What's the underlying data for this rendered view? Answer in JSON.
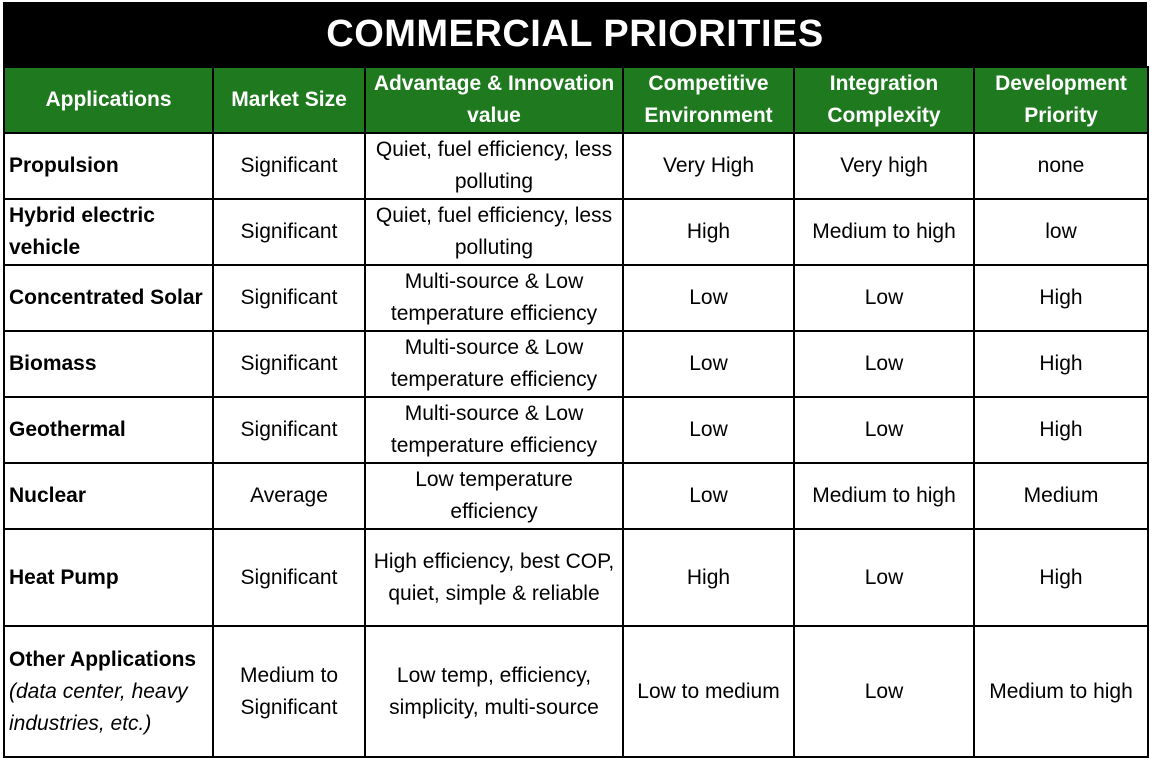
{
  "title": "COMMERCIAL PRIORITIES",
  "colors": {
    "title_bg": "#000000",
    "header_bg": "#1f7a1f",
    "header_text": "#ffffff",
    "border": "#000000"
  },
  "columns": [
    "Applications",
    "Market Size",
    "Advantage & Innovation value",
    "Competitive Environment",
    "Integration Complexity",
    "Development Priority"
  ],
  "rows": [
    {
      "application": "Propulsion",
      "note": "",
      "market_size": "Significant",
      "advantage": "Quiet, fuel efficiency, less polluting",
      "competitive": "Very High",
      "integration": "Very high",
      "priority": "none"
    },
    {
      "application": "Hybrid electric vehicle",
      "note": "",
      "market_size": "Significant",
      "advantage": "Quiet, fuel efficiency, less polluting",
      "competitive": "High",
      "integration": "Medium to high",
      "priority": "low"
    },
    {
      "application": "Concentrated Solar",
      "note": "",
      "market_size": "Significant",
      "advantage": "Multi-source & Low temperature efficiency",
      "competitive": "Low",
      "integration": "Low",
      "priority": "High"
    },
    {
      "application": "Biomass",
      "note": "",
      "market_size": "Significant",
      "advantage": "Multi-source & Low temperature efficiency",
      "competitive": "Low",
      "integration": "Low",
      "priority": "High"
    },
    {
      "application": "Geothermal",
      "note": "",
      "market_size": "Significant",
      "advantage": "Multi-source & Low temperature efficiency",
      "competitive": "Low",
      "integration": "Low",
      "priority": "High"
    },
    {
      "application": "Nuclear",
      "note": "",
      "market_size": "Average",
      "advantage": "Low temperature efficiency",
      "competitive": "Low",
      "integration": "Medium to high",
      "priority": "Medium"
    },
    {
      "application": "Heat Pump",
      "note": "",
      "market_size": "Significant",
      "advantage": "High efficiency, best COP, quiet, simple & reliable",
      "competitive": "High",
      "integration": "Low",
      "priority": "High"
    },
    {
      "application": "Other Applications",
      "note": "(data center, heavy industries, etc.)",
      "market_size": "Medium to Significant",
      "advantage": "Low temp, efficiency, simplicity, multi-source",
      "competitive": "Low to medium",
      "integration": "Low",
      "priority": "Medium to high"
    }
  ]
}
